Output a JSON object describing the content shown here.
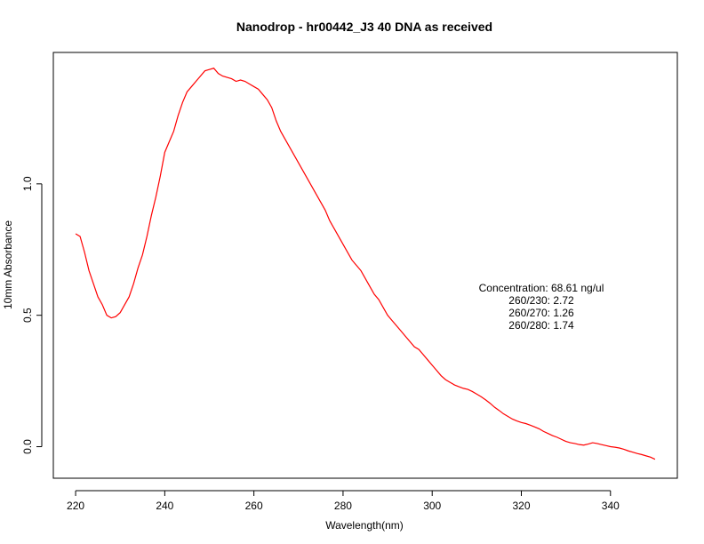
{
  "chart_data": {
    "type": "line",
    "title": "Nanodrop - hr00442_J3 40 DNA as received",
    "xlabel": "Wavelength(nm)",
    "ylabel": "10mm Absorbance",
    "xlim": [
      215,
      355
    ],
    "ylim": [
      -0.12,
      1.5
    ],
    "x_ticks": [
      220,
      240,
      260,
      280,
      300,
      320,
      340
    ],
    "y_ticks": [
      0.0,
      0.5,
      1.0
    ],
    "y_tick_labels": [
      "0.0",
      "0.5",
      "1.0"
    ],
    "grid": false,
    "series": [
      {
        "color": "#ff0000",
        "x": [
          220,
          221,
          222,
          223,
          224,
          225,
          226,
          227,
          228,
          229,
          230,
          231,
          232,
          233,
          234,
          235,
          236,
          237,
          238,
          239,
          240,
          241,
          242,
          243,
          244,
          245,
          246,
          247,
          248,
          249,
          250,
          251,
          252,
          253,
          254,
          255,
          256,
          257,
          258,
          259,
          260,
          261,
          262,
          263,
          264,
          265,
          266,
          267,
          268,
          269,
          270,
          271,
          272,
          273,
          274,
          275,
          276,
          277,
          278,
          279,
          280,
          281,
          282,
          283,
          284,
          285,
          286,
          287,
          288,
          289,
          290,
          291,
          292,
          293,
          294,
          295,
          296,
          297,
          298,
          299,
          300,
          301,
          302,
          303,
          304,
          305,
          306,
          307,
          308,
          309,
          310,
          311,
          312,
          313,
          314,
          315,
          316,
          317,
          318,
          319,
          320,
          321,
          322,
          323,
          324,
          325,
          326,
          327,
          328,
          329,
          330,
          331,
          332,
          333,
          334,
          335,
          336,
          337,
          338,
          339,
          340,
          341,
          342,
          343,
          344,
          345,
          346,
          347,
          348,
          349,
          350
        ],
        "y": [
          0.81,
          0.8,
          0.74,
          0.67,
          0.62,
          0.57,
          0.54,
          0.5,
          0.49,
          0.495,
          0.51,
          0.54,
          0.57,
          0.62,
          0.68,
          0.73,
          0.8,
          0.88,
          0.95,
          1.03,
          1.12,
          1.16,
          1.2,
          1.26,
          1.31,
          1.35,
          1.37,
          1.39,
          1.41,
          1.43,
          1.435,
          1.44,
          1.42,
          1.41,
          1.405,
          1.4,
          1.39,
          1.395,
          1.39,
          1.38,
          1.37,
          1.36,
          1.34,
          1.32,
          1.29,
          1.24,
          1.2,
          1.17,
          1.14,
          1.11,
          1.08,
          1.05,
          1.02,
          0.99,
          0.96,
          0.93,
          0.9,
          0.86,
          0.83,
          0.8,
          0.77,
          0.74,
          0.71,
          0.69,
          0.67,
          0.64,
          0.61,
          0.58,
          0.56,
          0.53,
          0.5,
          0.48,
          0.46,
          0.44,
          0.42,
          0.4,
          0.38,
          0.37,
          0.35,
          0.33,
          0.31,
          0.29,
          0.27,
          0.255,
          0.245,
          0.235,
          0.228,
          0.222,
          0.218,
          0.21,
          0.2,
          0.19,
          0.178,
          0.165,
          0.15,
          0.138,
          0.125,
          0.115,
          0.105,
          0.098,
          0.092,
          0.088,
          0.082,
          0.075,
          0.068,
          0.058,
          0.05,
          0.042,
          0.036,
          0.028,
          0.02,
          0.015,
          0.012,
          0.008,
          0.006,
          0.01,
          0.015,
          0.012,
          0.008,
          0.004,
          0.0,
          -0.002,
          -0.005,
          -0.01,
          -0.016,
          -0.021,
          -0.026,
          -0.03,
          -0.035,
          -0.04,
          -0.048
        ]
      }
    ],
    "annotation": [
      "Concentration: 68.61 ng/ul",
      "260/230: 2.72",
      "260/270: 1.26",
      "260/280: 1.74"
    ]
  }
}
